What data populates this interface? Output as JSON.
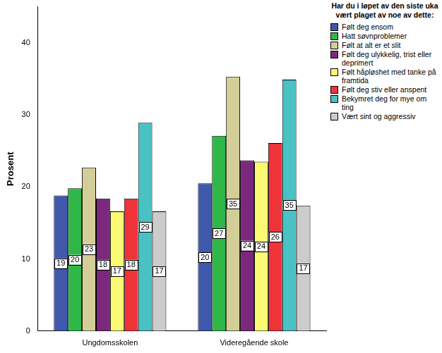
{
  "chart_data": {
    "type": "bar",
    "y_label": "Prosent",
    "legend_title": "Har du i løpet av den siste uka vært plaget av noe av dette:",
    "categories": [
      "Ungdomsskolen",
      "Videregående skole"
    ],
    "series": [
      {
        "name": "Følt deg ensom",
        "color": "#3e58ac",
        "values": [
          18.8,
          20.5
        ],
        "value_labels": [
          "19",
          "20"
        ]
      },
      {
        "name": "Hatt søvnproblemer",
        "color": "#2eb848",
        "values": [
          19.8,
          27.1
        ],
        "value_labels": [
          "20",
          "27"
        ]
      },
      {
        "name": "Følt at alt er et slit",
        "color": "#d3ce97",
        "values": [
          22.7,
          35.3
        ],
        "value_labels": [
          "23",
          "35"
        ]
      },
      {
        "name": "Følt deg ulykkelig, trist eller deprimert",
        "color": "#7c287d",
        "values": [
          18.4,
          23.7
        ],
        "value_labels": [
          "18",
          "24"
        ]
      },
      {
        "name": "Følt håpløshet med tanke på framtida",
        "color": "#fbf873",
        "values": [
          16.6,
          23.5
        ],
        "value_labels": [
          "17",
          "24"
        ]
      },
      {
        "name": "Følt deg stiv eller anspent",
        "color": "#ef3338",
        "values": [
          18.4,
          26.1
        ],
        "value_labels": [
          "18",
          "26"
        ]
      },
      {
        "name": "Bekymret deg for mye om ting",
        "color": "#48c2c5",
        "values": [
          28.9,
          34.9
        ],
        "value_labels": [
          "29",
          "35"
        ]
      },
      {
        "name": "Vært sint og aggressiv",
        "color": "#cccccc",
        "values": [
          16.6,
          17.4
        ],
        "value_labels": [
          "17",
          "17"
        ]
      }
    ],
    "ylim": [
      0,
      45
    ],
    "yticks": [
      0,
      10,
      20,
      30,
      40
    ],
    "grid": false,
    "legend": "right",
    "data_labels": true
  }
}
